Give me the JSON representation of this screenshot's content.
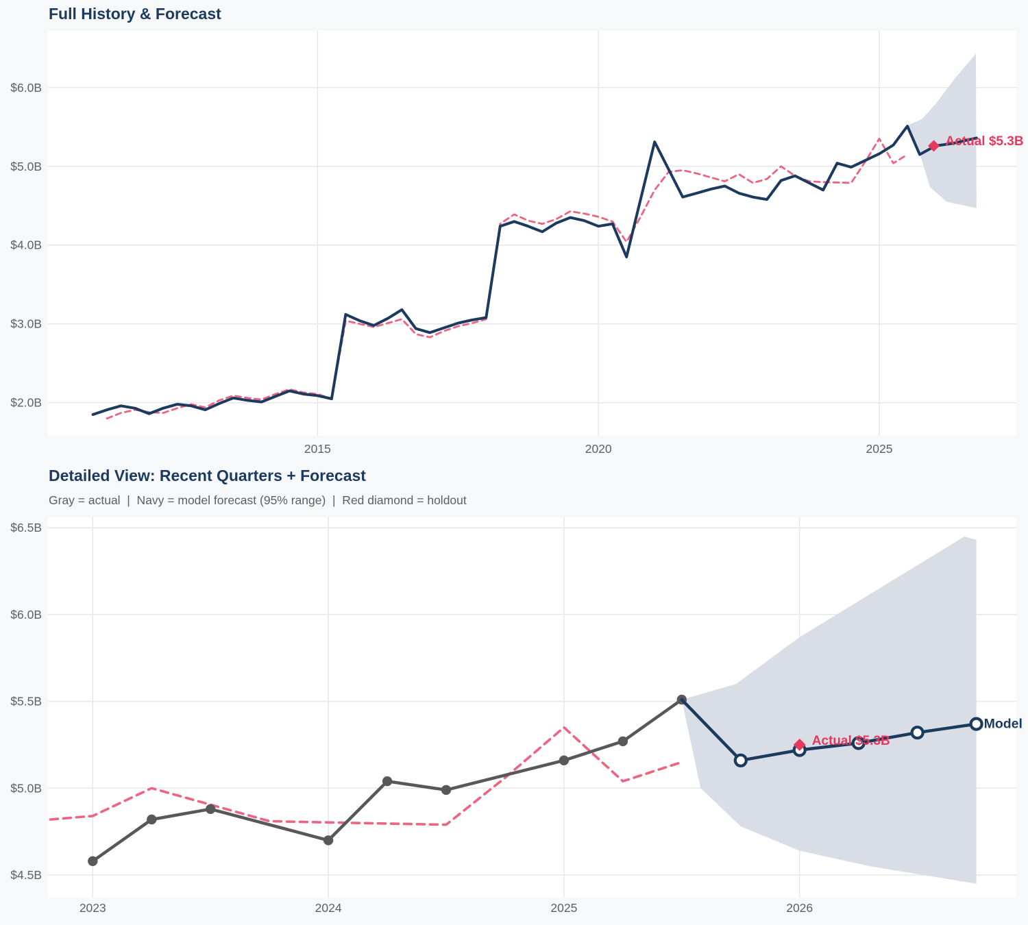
{
  "page": {
    "background": "#f7f8f9",
    "plot_background": "#ffffff",
    "grid_color": "#e5e7ea",
    "tick_label_color": "#5d6167",
    "title_color": "#1c3a5e"
  },
  "colors": {
    "navy": "#1c3a5e",
    "pink": "#ee6480",
    "crimson": "#e7395e",
    "gray": "#58585a",
    "band": "#d8dde6"
  },
  "chart_data": [
    {
      "type": "line",
      "title": "Full History & Forecast",
      "xlim": [
        2010.2,
        2027.44
      ],
      "ylim": [
        1.58,
        6.72
      ],
      "grid": true,
      "x_ticks": [
        {
          "value": 2015,
          "label": "2015"
        },
        {
          "value": 2020,
          "label": "2020"
        },
        {
          "value": 2025,
          "label": "2025"
        }
      ],
      "y_ticks": [
        {
          "value": 2.0,
          "label": "$2.0B"
        },
        {
          "value": 3.0,
          "label": "$3.0B"
        },
        {
          "value": 4.0,
          "label": "$4.0B"
        },
        {
          "value": 5.0,
          "label": "$5.0B"
        },
        {
          "value": 6.0,
          "label": "$6.0B"
        }
      ],
      "band": {
        "name": "forecast-95pct-range",
        "color": "#d8dde6",
        "upper": [
          [
            2025.5,
            5.52
          ],
          [
            2025.76,
            5.6
          ],
          [
            2026.0,
            5.79
          ],
          [
            2026.35,
            6.12
          ],
          [
            2026.72,
            6.43
          ]
        ],
        "lower": [
          [
            2025.5,
            5.52
          ],
          [
            2025.74,
            5.12
          ],
          [
            2025.9,
            4.74
          ],
          [
            2026.2,
            4.55
          ],
          [
            2026.73,
            4.47
          ]
        ]
      },
      "series": [
        {
          "name": "baseline-dashed",
          "color": "#ee6480",
          "dashed": true,
          "width": 2.8,
          "marker": "none",
          "points": [
            [
              2011.25,
              1.8
            ],
            [
              2011.5,
              1.87
            ],
            [
              2011.75,
              1.91
            ],
            [
              2012.0,
              1.88
            ],
            [
              2012.25,
              1.87
            ],
            [
              2012.5,
              1.93
            ],
            [
              2012.75,
              1.98
            ],
            [
              2013.0,
              1.94
            ],
            [
              2013.25,
              2.03
            ],
            [
              2013.5,
              2.09
            ],
            [
              2013.75,
              2.06
            ],
            [
              2014.0,
              2.04
            ],
            [
              2014.25,
              2.11
            ],
            [
              2014.5,
              2.17
            ],
            [
              2014.75,
              2.13
            ],
            [
              2015.0,
              2.11
            ],
            [
              2015.25,
              2.05
            ],
            [
              2015.5,
              3.04
            ],
            [
              2015.75,
              3.0
            ],
            [
              2016.0,
              2.96
            ],
            [
              2016.25,
              3.01
            ],
            [
              2016.5,
              3.06
            ],
            [
              2016.75,
              2.87
            ],
            [
              2017.0,
              2.83
            ],
            [
              2017.25,
              2.91
            ],
            [
              2017.5,
              2.97
            ],
            [
              2017.75,
              3.01
            ],
            [
              2018.0,
              3.06
            ],
            [
              2018.25,
              4.27
            ],
            [
              2018.5,
              4.39
            ],
            [
              2018.75,
              4.31
            ],
            [
              2019.0,
              4.27
            ],
            [
              2019.25,
              4.33
            ],
            [
              2019.5,
              4.43
            ],
            [
              2019.75,
              4.4
            ],
            [
              2020.0,
              4.36
            ],
            [
              2020.25,
              4.3
            ],
            [
              2020.5,
              4.04
            ],
            [
              2020.75,
              4.36
            ],
            [
              2021.0,
              4.7
            ],
            [
              2021.25,
              4.93
            ],
            [
              2021.5,
              4.95
            ],
            [
              2021.75,
              4.91
            ],
            [
              2022.0,
              4.86
            ],
            [
              2022.25,
              4.81
            ],
            [
              2022.5,
              4.9
            ],
            [
              2022.75,
              4.79
            ],
            [
              2023.0,
              4.84
            ],
            [
              2023.25,
              5.0
            ],
            [
              2023.5,
              4.88
            ],
            [
              2023.75,
              4.81
            ],
            [
              2024.0,
              4.8
            ],
            [
              2024.5,
              4.79
            ],
            [
              2024.75,
              5.06
            ],
            [
              2025.0,
              5.35
            ],
            [
              2025.25,
              5.04
            ],
            [
              2025.5,
              5.15
            ]
          ]
        },
        {
          "name": "actual-history",
          "color": "#1c3a5e",
          "dashed": false,
          "width": 4,
          "marker": "none",
          "points": [
            [
              2011.0,
              1.85
            ],
            [
              2011.25,
              1.91
            ],
            [
              2011.5,
              1.96
            ],
            [
              2011.75,
              1.93
            ],
            [
              2012.0,
              1.86
            ],
            [
              2012.25,
              1.93
            ],
            [
              2012.5,
              1.98
            ],
            [
              2012.75,
              1.96
            ],
            [
              2013.0,
              1.91
            ],
            [
              2013.25,
              1.99
            ],
            [
              2013.5,
              2.06
            ],
            [
              2013.75,
              2.03
            ],
            [
              2014.0,
              2.01
            ],
            [
              2014.25,
              2.08
            ],
            [
              2014.5,
              2.15
            ],
            [
              2014.75,
              2.11
            ],
            [
              2015.0,
              2.09
            ],
            [
              2015.25,
              2.05
            ],
            [
              2015.5,
              3.12
            ],
            [
              2015.75,
              3.04
            ],
            [
              2016.0,
              2.98
            ],
            [
              2016.25,
              3.07
            ],
            [
              2016.5,
              3.18
            ],
            [
              2016.75,
              2.94
            ],
            [
              2017.0,
              2.89
            ],
            [
              2017.25,
              2.95
            ],
            [
              2017.5,
              3.01
            ],
            [
              2017.75,
              3.05
            ],
            [
              2018.0,
              3.08
            ],
            [
              2018.25,
              4.24
            ],
            [
              2018.5,
              4.3
            ],
            [
              2018.75,
              4.24
            ],
            [
              2019.0,
              4.17
            ],
            [
              2019.25,
              4.28
            ],
            [
              2019.5,
              4.35
            ],
            [
              2019.75,
              4.31
            ],
            [
              2020.0,
              4.24
            ],
            [
              2020.25,
              4.27
            ],
            [
              2020.5,
              3.85
            ],
            [
              2021.0,
              5.31
            ],
            [
              2021.5,
              4.61
            ],
            [
              2021.75,
              4.66
            ],
            [
              2022.0,
              4.71
            ],
            [
              2022.25,
              4.75
            ],
            [
              2022.5,
              4.66
            ],
            [
              2022.75,
              4.61
            ],
            [
              2023.0,
              4.58
            ],
            [
              2023.25,
              4.82
            ],
            [
              2023.5,
              4.88
            ],
            [
              2024.0,
              4.7
            ],
            [
              2024.25,
              5.04
            ],
            [
              2024.5,
              4.99
            ],
            [
              2025.0,
              5.16
            ],
            [
              2025.25,
              5.27
            ],
            [
              2025.5,
              5.51
            ],
            [
              2025.72,
              5.15
            ],
            [
              2026.0,
              5.26
            ],
            [
              2026.3,
              5.29
            ],
            [
              2026.73,
              5.36
            ]
          ]
        }
      ],
      "annotations": [
        {
          "name": "holdout-marker",
          "shape": "diamond",
          "x": 2025.97,
          "y": 5.26,
          "size": 8.5,
          "color": "#e7395e",
          "text": "Actual $5.3B",
          "text_dx": 17,
          "text_dy": -10,
          "font_size": 19
        }
      ]
    },
    {
      "type": "line",
      "title": "Detailed View: Recent Quarters + Forecast",
      "legend_note": "Gray = actual  |  Navy = model forecast (95% range)  |  Red diamond = holdout",
      "xlim": [
        2022.81,
        2026.92
      ],
      "ylim": [
        4.37,
        6.56
      ],
      "grid": true,
      "x_ticks": [
        {
          "value": 2023,
          "label": "2023"
        },
        {
          "value": 2024,
          "label": "2024"
        },
        {
          "value": 2025,
          "label": "2025"
        },
        {
          "value": 2026,
          "label": "2026"
        }
      ],
      "y_ticks": [
        {
          "value": 4.5,
          "label": "$4.5B"
        },
        {
          "value": 5.0,
          "label": "$5.0B"
        },
        {
          "value": 5.5,
          "label": "$5.5B"
        },
        {
          "value": 6.0,
          "label": "$6.0B"
        },
        {
          "value": 6.5,
          "label": "$6.5B"
        }
      ],
      "band": {
        "name": "forecast-95pct-range",
        "color": "#d8dde6",
        "upper": [
          [
            2025.5,
            5.51
          ],
          [
            2025.73,
            5.6
          ],
          [
            2026.0,
            5.87
          ],
          [
            2026.35,
            6.16
          ],
          [
            2026.7,
            6.45
          ],
          [
            2026.75,
            6.43
          ]
        ],
        "lower": [
          [
            2025.5,
            5.51
          ],
          [
            2025.58,
            5.0
          ],
          [
            2025.75,
            4.78
          ],
          [
            2026.0,
            4.64
          ],
          [
            2026.3,
            4.55
          ],
          [
            2026.75,
            4.45
          ]
        ]
      },
      "series": [
        {
          "name": "baseline-dashed",
          "color": "#ee6480",
          "dashed": true,
          "width": 3.6,
          "marker": "none",
          "points": [
            [
              2022.82,
              4.82
            ],
            [
              2023.0,
              4.84
            ],
            [
              2023.25,
              5.0
            ],
            [
              2023.75,
              4.81
            ],
            [
              2024.1,
              4.8
            ],
            [
              2024.5,
              4.79
            ],
            [
              2024.75,
              5.06
            ],
            [
              2025.0,
              5.35
            ],
            [
              2025.25,
              5.04
            ],
            [
              2025.5,
              5.15
            ]
          ]
        },
        {
          "name": "actual-gray",
          "color": "#58585a",
          "dashed": false,
          "width": 4.5,
          "marker": "dot",
          "marker_r": 7.2,
          "points": [
            [
              2023.0,
              4.58
            ],
            [
              2023.25,
              4.82
            ],
            [
              2023.5,
              4.88
            ],
            [
              2024.0,
              4.7
            ],
            [
              2024.25,
              5.04
            ],
            [
              2024.5,
              4.99
            ],
            [
              2025.0,
              5.16
            ],
            [
              2025.25,
              5.27
            ],
            [
              2025.5,
              5.51
            ]
          ]
        },
        {
          "name": "model-forecast",
          "color": "#1c3a5e",
          "dashed": false,
          "width": 4.5,
          "marker": "open-circle",
          "marker_r": 8,
          "marker_skip_first": true,
          "end_label": {
            "text": "Model",
            "dx": 11,
            "dy": 6,
            "font_size": 19.5
          },
          "points": [
            [
              2025.5,
              5.51
            ],
            [
              2025.75,
              5.16
            ],
            [
              2026.0,
              5.22
            ],
            [
              2026.25,
              5.26
            ],
            [
              2026.5,
              5.32
            ],
            [
              2026.75,
              5.37
            ]
          ]
        }
      ],
      "annotations": [
        {
          "name": "holdout-marker",
          "shape": "diamond",
          "x": 2026.0,
          "y": 5.25,
          "size": 9,
          "color": "#e7395e",
          "text": "Actual $5.3B",
          "text_dx": 18,
          "text_dy": -9,
          "font_size": 19
        }
      ]
    }
  ]
}
